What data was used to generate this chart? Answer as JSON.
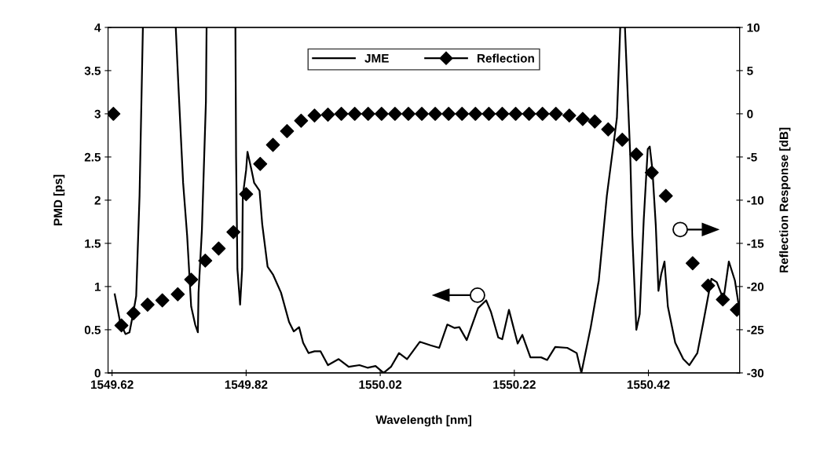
{
  "chart_data": {
    "type": "line",
    "xlabel": "Wavelength [nm]",
    "ylabel": "PMD [ps]",
    "y2label": "Reflection Response [dB]",
    "xlim": [
      1549.614,
      1550.556
    ],
    "xticks": [
      1549.62,
      1549.82,
      1550.02,
      1550.22,
      1550.42
    ],
    "ylim": [
      0,
      4
    ],
    "yticks": [
      0,
      0.5,
      1,
      1.5,
      2,
      2.5,
      3,
      3.5,
      4
    ],
    "y2lim": [
      -30,
      10
    ],
    "y2ticks": [
      -30,
      -25,
      -20,
      -15,
      -10,
      -5,
      0,
      5,
      10
    ],
    "grid": false,
    "legend": "top",
    "series": [
      {
        "name": "JME",
        "color": "#000000",
        "marker": "none",
        "line_style": "solid",
        "x": [
          1549.624,
          1549.632,
          1549.64,
          1549.646,
          1549.652,
          1549.656,
          1549.661,
          1549.666,
          1549.69,
          1549.715,
          1549.719,
          1549.726,
          1549.732,
          1549.738,
          1549.744,
          1549.748,
          1549.749,
          1549.754,
          1549.76,
          1549.761,
          1549.783,
          1549.804,
          1549.805,
          1549.807,
          1549.811,
          1549.814,
          1549.815,
          1549.82,
          1549.822,
          1549.828,
          1549.832,
          1549.84,
          1549.844,
          1549.852,
          1549.86,
          1549.872,
          1549.884,
          1549.891,
          1549.899,
          1549.905,
          1549.913,
          1549.922,
          1549.931,
          1549.942,
          1549.958,
          1549.973,
          1549.989,
          1550.001,
          1550.013,
          1550.025,
          1550.036,
          1550.048,
          1550.06,
          1550.079,
          1550.095,
          1550.108,
          1550.12,
          1550.131,
          1550.138,
          1550.149,
          1550.166,
          1550.178,
          1550.185,
          1550.196,
          1550.202,
          1550.212,
          1550.225,
          1550.232,
          1550.244,
          1550.26,
          1550.269,
          1550.281,
          1550.299,
          1550.313,
          1550.32,
          1550.334,
          1550.346,
          1550.358,
          1550.373,
          1550.378,
          1550.382,
          1550.385,
          1550.393,
          1550.396,
          1550.402,
          1550.407,
          1550.413,
          1550.419,
          1550.422,
          1550.426,
          1550.431,
          1550.435,
          1550.439,
          1550.444,
          1550.449,
          1550.46,
          1550.472,
          1550.481,
          1550.493,
          1550.502,
          1550.514,
          1550.522,
          1550.532,
          1550.54,
          1550.549,
          1550.555
        ],
        "values": [
          0.91,
          0.59,
          0.45,
          0.47,
          0.71,
          0.89,
          2.05,
          4,
          null,
          4,
          3.32,
          2.2,
          1.59,
          0.77,
          0.56,
          0.47,
          0.93,
          1.65,
          3.14,
          4,
          null,
          4,
          2.5,
          1.2,
          0.79,
          1.2,
          2.05,
          2.35,
          2.56,
          2.35,
          2.2,
          2.11,
          1.72,
          1.23,
          1.14,
          0.93,
          0.59,
          0.48,
          0.53,
          0.35,
          0.23,
          0.25,
          0.25,
          0.09,
          0.16,
          0.07,
          0.09,
          0.06,
          0.08,
          0,
          0.07,
          0.23,
          0.16,
          0.36,
          0.32,
          0.29,
          0.56,
          0.52,
          0.53,
          0.38,
          0.75,
          0.84,
          0.71,
          0.41,
          0.39,
          0.73,
          0.34,
          0.44,
          0.18,
          0.18,
          0.15,
          0.3,
          0.29,
          0.23,
          0,
          0.53,
          1.07,
          2.05,
          2.95,
          4,
          null,
          4,
          2.5,
          1.59,
          0.5,
          0.68,
          1.77,
          2.59,
          2.62,
          2.35,
          1.71,
          0.95,
          1.14,
          1.29,
          0.77,
          0.35,
          0.16,
          0.09,
          0.23,
          0.59,
          1.09,
          1.05,
          0.85,
          1.29,
          1.07,
          0.77
        ]
      },
      {
        "name": "Reflection",
        "type": "scatter",
        "axis": "y2",
        "color": "#000000",
        "marker": "diamond",
        "x": [
          1549.622,
          1549.634,
          1549.652,
          1549.673,
          1549.695,
          1549.718,
          1549.738,
          1549.759,
          1549.779,
          1549.801,
          1549.82,
          1549.841,
          1549.86,
          1549.881,
          1549.902,
          1549.922,
          1549.942,
          1549.962,
          1549.982,
          1550.002,
          1550.022,
          1550.042,
          1550.062,
          1550.082,
          1550.102,
          1550.122,
          1550.142,
          1550.162,
          1550.182,
          1550.202,
          1550.222,
          1550.242,
          1550.262,
          1550.282,
          1550.302,
          1550.322,
          1550.34,
          1550.36,
          1550.381,
          1550.402,
          1550.425,
          1550.446,
          1550.466,
          1550.486,
          1550.509,
          1550.531,
          1550.552
        ],
        "values": [
          0,
          -24.5,
          -23.1,
          -22.1,
          -21.6,
          -20.9,
          -19.2,
          -17.0,
          -15.6,
          -13.7,
          -9.3,
          -5.8,
          -3.6,
          -2.0,
          -0.8,
          -0.2,
          -0.1,
          0,
          0,
          0,
          0,
          0,
          0,
          0,
          0,
          0,
          0,
          0,
          0,
          0,
          0,
          0,
          0,
          0,
          -0.2,
          -0.6,
          -0.9,
          -1.8,
          -3.0,
          -4.7,
          -6.8,
          -9.5,
          null,
          -17.3,
          -19.9,
          -21.5,
          -22.7
        ]
      }
    ]
  }
}
